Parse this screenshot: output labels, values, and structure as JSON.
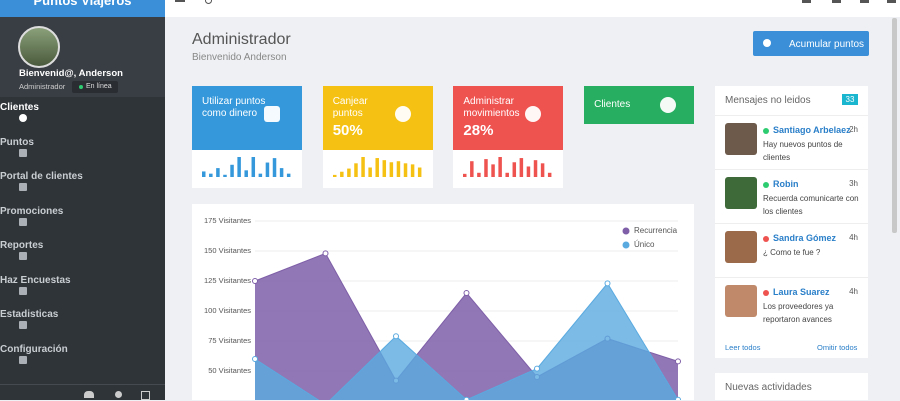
{
  "sidebar": {
    "brand": "Puntos Viajeros",
    "user_greeting": "Bienvenid@, Anderson",
    "user_role": "Administrador",
    "status": "En línea",
    "menu": [
      "Clientes",
      "Puntos",
      "Portal de clientes",
      "Promociones",
      "Reportes",
      "Haz Encuestas",
      "Estadisticas",
      "Configuración"
    ]
  },
  "header": {
    "title": "Administrador",
    "subtitle": "Bienvenido Anderson",
    "button": "Acumular puntos"
  },
  "cards": [
    {
      "title": "Utilizar puntos como dinero",
      "color": "#3498db",
      "sparkline": [
        5,
        3,
        8,
        2,
        11,
        18,
        6,
        18,
        3,
        13,
        17,
        8,
        3
      ]
    },
    {
      "title": "Canjear puntos",
      "value": "50%",
      "color": "#f5c113",
      "sparkline": [
        2,
        5,
        8,
        13,
        19,
        9,
        18,
        16,
        14,
        15,
        13,
        12,
        9
      ]
    },
    {
      "title": "Administrar movimientos",
      "value": "28%",
      "color": "#ef5350",
      "sparkline": [
        3,
        15,
        4,
        17,
        12,
        19,
        4,
        14,
        18,
        10,
        16,
        13,
        4
      ]
    },
    {
      "title": "Clientes",
      "color": "#27ae60"
    }
  ],
  "chart_data": {
    "type": "area",
    "categories": [
      null,
      null,
      null,
      null,
      null,
      null,
      null
    ],
    "series": [
      {
        "name": "Recurrencia",
        "color": "#7e5fa8",
        "values": [
          125,
          148,
          42,
          115,
          45,
          77,
          58
        ]
      },
      {
        "name": "Único",
        "color": "#5aaae0",
        "values": [
          60,
          22,
          79,
          26,
          52,
          123,
          26
        ]
      }
    ],
    "ylim": [
      25,
      175
    ],
    "yticks": [
      {
        "value": 50,
        "label": "50 Visitantes"
      },
      {
        "value": 75,
        "label": "75 Visitantes"
      },
      {
        "value": 100,
        "label": "100 Visitantes"
      },
      {
        "value": 125,
        "label": "125 Visitantes"
      },
      {
        "value": 150,
        "label": "150 Visitantes"
      },
      {
        "value": 175,
        "label": "175 Visitantes"
      }
    ],
    "grid": true,
    "legend": "top-right"
  },
  "messages": {
    "title": "Mensajes no leidos",
    "count": "33",
    "items": [
      {
        "name": "Santiago Arbelaez",
        "time": "2h",
        "text": "Hay nuevos puntos de clientes"
      },
      {
        "name": "Robin",
        "time": "3h",
        "text": "Recuerda comunicarte con los clientes"
      },
      {
        "name": "Sandra Gómez",
        "time": "4h",
        "text": "¿ Como te fue ?"
      },
      {
        "name": "Laura Suarez",
        "time": "4h",
        "text": "Los proveedores ya reportaron avances"
      }
    ],
    "read_all": "Leer todos",
    "skip_all": "Omitir todos"
  },
  "activities": {
    "title": "Nuevas actividades"
  }
}
